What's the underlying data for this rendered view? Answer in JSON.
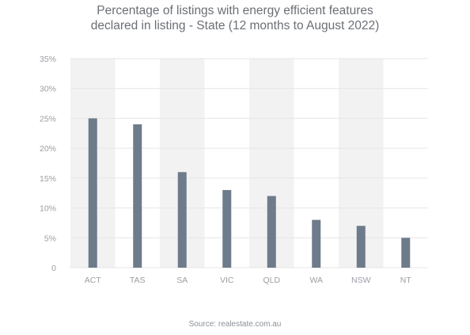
{
  "title_line1": "Percentage of listings with energy efficient features",
  "title_line2": "declared in listing - State (12 months to August 2022)",
  "source": "Source: realestate.com.au",
  "colors": {
    "bar": "#6e7b8b",
    "band": "#f2f2f2",
    "grid": "#e6e6e6",
    "text": "#9a9ea4"
  },
  "chart_data": {
    "type": "bar",
    "title": "Percentage of listings with energy efficient features declared in listing - State (12 months to August 2022)",
    "categories": [
      "ACT",
      "TAS",
      "SA",
      "VIC",
      "QLD",
      "WA",
      "NSW",
      "NT"
    ],
    "values": [
      25,
      24,
      16,
      13,
      12,
      8,
      7,
      5
    ],
    "ylim": [
      0,
      35
    ],
    "yticks": [
      "0",
      "5%",
      "10%",
      "15%",
      "20%",
      "25%",
      "30%",
      "35%"
    ],
    "xlabel": "",
    "ylabel": "",
    "grid": true,
    "alternating_bands": true
  }
}
